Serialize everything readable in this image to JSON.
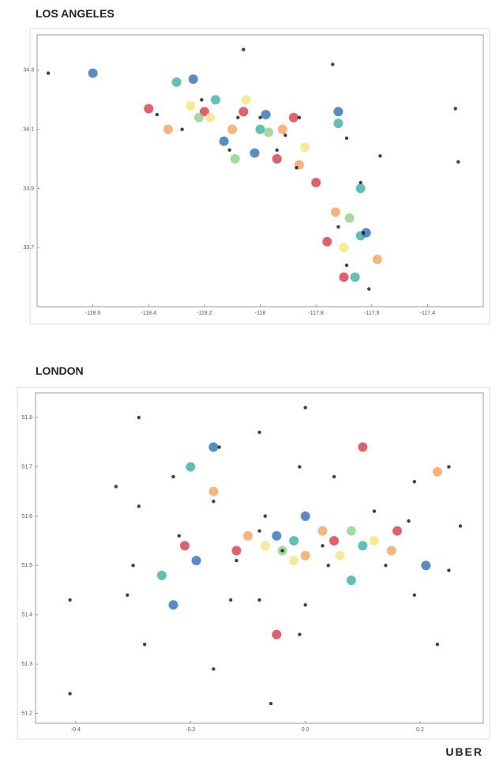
{
  "chart_data": [
    {
      "type": "scatter",
      "title": "LOS ANGELES",
      "xlim": [
        -118.8,
        -117.2
      ],
      "ylim": [
        33.5,
        34.42
      ],
      "xticks": [
        -118.6,
        -118.4,
        -118.2,
        -118.0,
        -117.8,
        -117.6,
        -117.4
      ],
      "yticks": [
        33.7,
        33.9,
        34.1,
        34.3
      ],
      "series": [
        {
          "color": "#3ab0a0",
          "marker_size": 6,
          "x": [
            -118.16,
            -118.0,
            -117.72,
            -117.64,
            -117.64,
            -117.66,
            -118.3
          ],
          "values": [
            34.2,
            34.1,
            34.12,
            33.9,
            33.74,
            33.6,
            34.26
          ]
        },
        {
          "color": "#d43a4a",
          "marker_size": 6,
          "x": [
            -118.06,
            -117.94,
            -117.88,
            -117.76,
            -117.7,
            -117.8,
            -118.4,
            -118.2
          ],
          "values": [
            34.16,
            34.0,
            34.14,
            33.72,
            33.6,
            33.92,
            34.17,
            34.16
          ]
        },
        {
          "color": "#2f6fb5",
          "marker_size": 6,
          "x": [
            -118.13,
            -117.98,
            -118.02,
            -118.24,
            -118.6,
            -117.72,
            -117.62
          ],
          "values": [
            34.06,
            34.15,
            34.02,
            34.27,
            34.29,
            34.16,
            33.75
          ]
        },
        {
          "color": "#f5a25a",
          "marker_size": 6,
          "x": [
            -117.92,
            -118.1,
            -117.73,
            -117.58,
            -118.33,
            -117.86
          ],
          "values": [
            34.1,
            34.1,
            33.82,
            33.66,
            34.1,
            33.98
          ]
        },
        {
          "color": "#f3e57a",
          "marker_size": 6,
          "x": [
            -118.18,
            -117.84,
            -117.7,
            -118.25,
            -118.05
          ],
          "values": [
            34.14,
            34.04,
            33.7,
            34.18,
            34.2
          ]
        },
        {
          "color": "#8fd08a",
          "marker_size": 6,
          "x": [
            -118.09,
            -118.22,
            -117.97,
            -117.68
          ],
          "values": [
            34.0,
            34.14,
            34.09,
            33.8
          ]
        },
        {
          "color": "#111111",
          "marker_size": 2.2,
          "x": [
            -118.76,
            -118.06,
            -117.74,
            -117.3,
            -118.21,
            -118.08,
            -118.0,
            -117.91,
            -118.11,
            -117.94,
            -117.86,
            -117.69,
            -117.57,
            -117.29,
            -117.87,
            -117.64,
            -117.72,
            -117.63,
            -117.61,
            -117.69,
            -118.37,
            -118.28
          ],
          "values": [
            34.29,
            34.37,
            34.32,
            34.17,
            34.2,
            34.14,
            34.14,
            34.08,
            34.03,
            34.03,
            34.14,
            34.07,
            34.01,
            33.99,
            33.97,
            33.92,
            33.77,
            33.75,
            33.56,
            33.64,
            34.15,
            34.1
          ]
        }
      ]
    },
    {
      "type": "scatter",
      "title": "LONDON",
      "xlim": [
        -0.47,
        0.31
      ],
      "ylim": [
        51.18,
        51.85
      ],
      "xticks": [
        -0.4,
        -0.2,
        {
          "value": 0,
          "label": "0.0"
        },
        0.2
      ],
      "yticks": [
        51.2,
        51.3,
        51.4,
        51.5,
        51.6,
        51.7,
        51.8
      ],
      "series": [
        {
          "color": "#3ab0a0",
          "marker_size": 6,
          "x": [
            -0.02,
            0.1,
            -0.25,
            0.08,
            -0.2
          ],
          "values": [
            51.55,
            51.54,
            51.48,
            51.47,
            51.7
          ]
        },
        {
          "color": "#d43a4a",
          "marker_size": 6,
          "x": [
            0.05,
            -0.12,
            0.16,
            -0.21,
            -0.05,
            0.1
          ],
          "values": [
            51.55,
            51.53,
            51.57,
            51.54,
            51.36,
            51.74
          ]
        },
        {
          "color": "#2f6fb5",
          "marker_size": 6,
          "x": [
            -0.05,
            -0.19,
            0.0,
            0.21,
            -0.16,
            -0.23
          ],
          "values": [
            51.56,
            51.51,
            51.6,
            51.5,
            51.74,
            51.42
          ]
        },
        {
          "color": "#f5a25a",
          "marker_size": 6,
          "x": [
            0.0,
            -0.1,
            0.03,
            -0.16,
            0.15,
            0.23
          ],
          "values": [
            51.52,
            51.56,
            51.57,
            51.65,
            51.53,
            51.69
          ]
        },
        {
          "color": "#f3e57a",
          "marker_size": 6,
          "x": [
            -0.02,
            0.06,
            -0.07,
            0.12
          ],
          "values": [
            51.51,
            51.52,
            51.54,
            51.55
          ]
        },
        {
          "color": "#8fd08a",
          "marker_size": 6,
          "x": [
            -0.04,
            0.08
          ],
          "values": [
            51.53,
            51.57
          ]
        },
        {
          "color": "#111111",
          "marker_size": 2.2,
          "x": [
            -0.29,
            0.0,
            -0.08,
            -0.15,
            -0.01,
            0.05,
            -0.23,
            -0.33,
            0.25,
            0.19,
            -0.29,
            -0.16,
            -0.07,
            0.12,
            0.18,
            0.27,
            -0.22,
            -0.08,
            -0.04,
            0.03,
            -0.3,
            -0.12,
            0.04,
            0.14,
            0.25,
            -0.41,
            -0.31,
            -0.13,
            -0.08,
            0.0,
            0.19,
            -0.28,
            -0.01,
            -0.16,
            0.23,
            -0.41,
            -0.06
          ],
          "values": [
            51.8,
            51.82,
            51.77,
            51.74,
            51.7,
            51.68,
            51.68,
            51.66,
            51.7,
            51.67,
            51.62,
            51.63,
            51.6,
            51.61,
            51.59,
            51.58,
            51.56,
            51.57,
            51.53,
            51.54,
            51.5,
            51.51,
            51.5,
            51.5,
            51.49,
            51.43,
            51.44,
            51.43,
            51.43,
            51.42,
            51.44,
            51.34,
            51.36,
            51.29,
            51.34,
            51.24,
            51.22
          ]
        }
      ]
    }
  ],
  "footer": {
    "brand": "UBER"
  }
}
